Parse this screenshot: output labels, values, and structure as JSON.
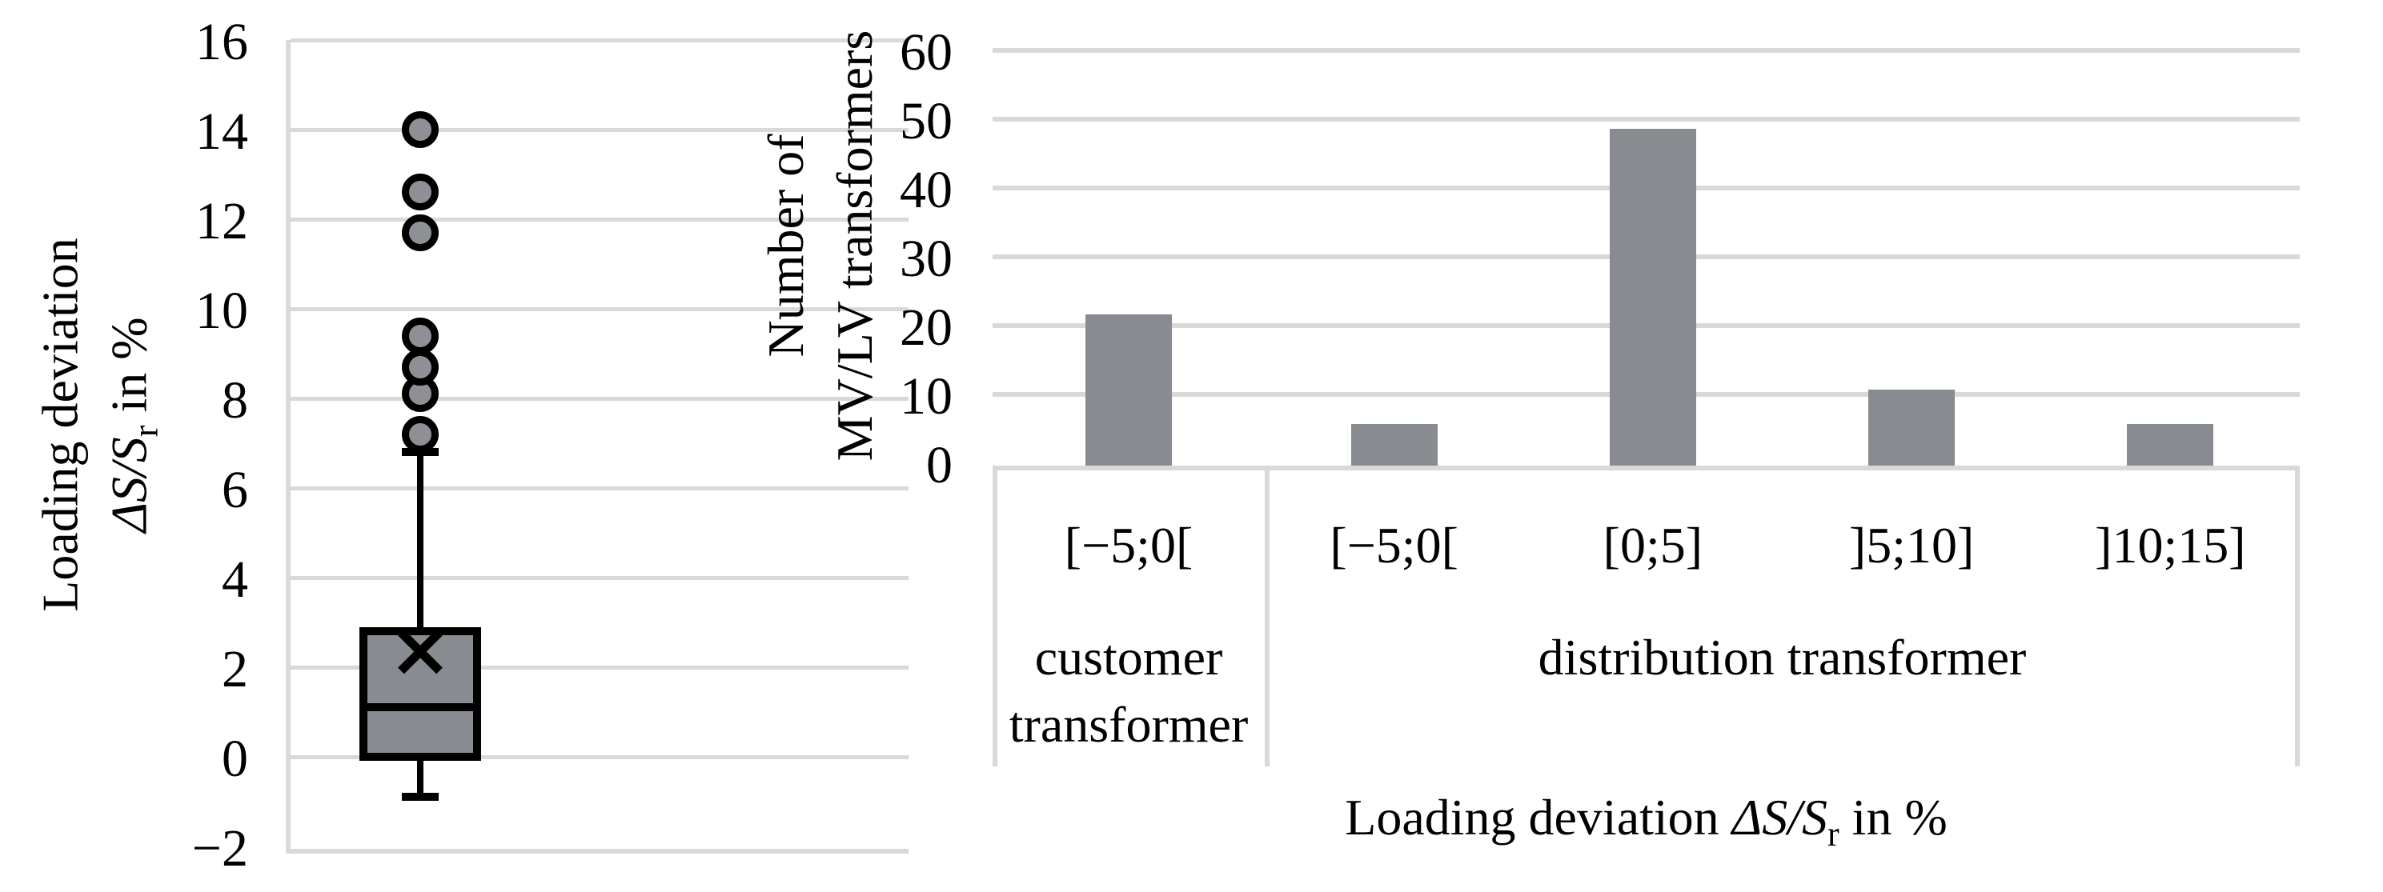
{
  "colors": {
    "fill_gray": "#888b90",
    "outlier_gray": "#8e9095",
    "grid_gray": "#d9d9d9",
    "line_black": "#000000"
  },
  "chart_data": [
    {
      "type": "boxplot",
      "ylabel_line1": "Loading deviation",
      "ylabel_line2_parts": {
        "math": "ΔS/S",
        "sub": "r",
        "post": " in %"
      },
      "ylim": [
        -2,
        16
      ],
      "yticks": [
        16,
        14,
        12,
        10,
        8,
        6,
        4,
        2,
        0,
        -2
      ],
      "grid": true,
      "box": {
        "whisker_low": -0.9,
        "q1": 0.0,
        "median": 1.1,
        "q3": 2.8,
        "whisker_high": 6.8,
        "mean": 2.35,
        "outliers": [
          7.2,
          8.1,
          8.7,
          9.4,
          11.7,
          12.6,
          14.0
        ]
      }
    },
    {
      "type": "bar",
      "ylabel_line1": "Number of",
      "ylabel_line2": "MV/LV transformers",
      "xlabel_parts": {
        "text": "Loading deviation ",
        "math": "ΔS/S",
        "sub": "r",
        "post": " in %"
      },
      "ylim": [
        0,
        60
      ],
      "yticks": [
        60,
        50,
        40,
        30,
        20,
        10,
        0
      ],
      "grid": true,
      "categories": [
        "[−5;0[",
        "[−5;0[",
        "[0;5]",
        "]5;10]",
        "]10;15]"
      ],
      "groups": [
        {
          "label": "customer transformer",
          "span": 1
        },
        {
          "label": "distribution transformer",
          "span": 4
        }
      ],
      "values": [
        22,
        6,
        49,
        11,
        6
      ]
    }
  ]
}
